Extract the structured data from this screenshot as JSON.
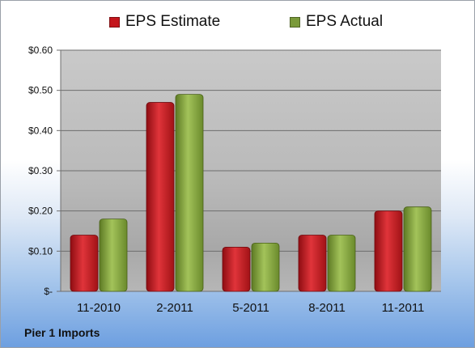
{
  "company": "Pier 1 Imports",
  "chart_data": {
    "type": "bar",
    "title": "",
    "xlabel": "",
    "ylabel": "",
    "categories": [
      "11-2010",
      "2-2011",
      "5-2011",
      "8-2011",
      "11-2011"
    ],
    "series": [
      {
        "name": "EPS Estimate",
        "color": "#c4161c",
        "values": [
          0.14,
          0.47,
          0.11,
          0.14,
          0.2
        ]
      },
      {
        "name": "EPS Actual",
        "color": "#7a9a3a",
        "values": [
          0.18,
          0.49,
          0.12,
          0.14,
          0.21
        ]
      }
    ],
    "ylim": [
      0,
      0.6
    ],
    "yticks": [
      {
        "value": 0.6,
        "label": "$0.60"
      },
      {
        "value": 0.5,
        "label": "$0.50"
      },
      {
        "value": 0.4,
        "label": "$0.40"
      },
      {
        "value": 0.3,
        "label": "$0.30"
      },
      {
        "value": 0.2,
        "label": "$0.20"
      },
      {
        "value": 0.1,
        "label": "$0.10"
      },
      {
        "value": 0.0,
        "label": "$-"
      }
    ],
    "grid": true,
    "legend_position": "top"
  }
}
